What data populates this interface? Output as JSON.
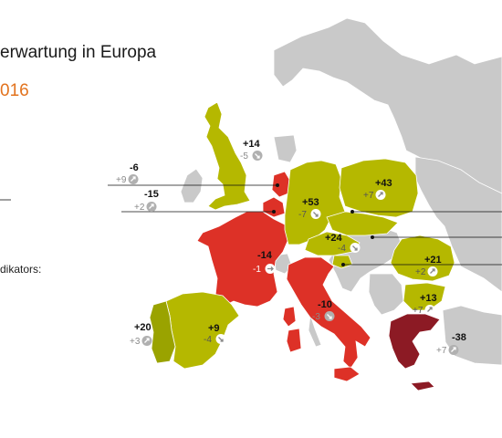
{
  "header": {
    "title": "erwartung in Europa",
    "subtitle": "016",
    "legend_label": "dikators:"
  },
  "colors": {
    "olive": "#b5b800",
    "olive_dark": "#9aa300",
    "red": "#dd3127",
    "dark_red": "#8c1a24",
    "grey": "#c9c9c9",
    "sea": "#ffffff"
  },
  "countries": [
    {
      "id": "uk",
      "name": "Großbritannien",
      "category": "olive",
      "value": "-6",
      "change": "+9",
      "arrow": "up"
    },
    {
      "id": "nl",
      "name": "Niederlande",
      "category": "red",
      "value": "+14",
      "change": "-5",
      "arrow": "down"
    },
    {
      "id": "be",
      "name": "Belgien",
      "category": "red",
      "value": "-15",
      "change": "+2",
      "arrow": "up"
    },
    {
      "id": "de",
      "name": "Deutschland",
      "category": "olive",
      "value": "+53",
      "change": "-7",
      "arrow": "down"
    },
    {
      "id": "pl",
      "name": "Polen",
      "category": "olive",
      "value": "+43",
      "change": "+7",
      "arrow": "up"
    },
    {
      "id": "fr",
      "name": "Frankreich",
      "category": "red",
      "value": "-14",
      "change": "-1",
      "arrow": "flat"
    },
    {
      "id": "at",
      "name": "Österreich",
      "category": "olive",
      "value": "+24",
      "change": "-4",
      "arrow": "down"
    },
    {
      "id": "ro",
      "name": "Rumänien",
      "category": "olive",
      "value": "+21",
      "change": "+2",
      "arrow": "up"
    },
    {
      "id": "bg",
      "name": "Bulgarien",
      "category": "olive",
      "value": "+13",
      "change": "+7",
      "arrow": "up"
    },
    {
      "id": "it",
      "name": "Italien",
      "category": "red",
      "value": "-10",
      "change": "-3",
      "arrow": "down"
    },
    {
      "id": "pt",
      "name": "Portugal",
      "category": "olive",
      "value": "+20",
      "change": "+3",
      "arrow": "up"
    },
    {
      "id": "es",
      "name": "Spanien",
      "category": "olive",
      "value": "+9",
      "change": "-4",
      "arrow": "down"
    },
    {
      "id": "gr",
      "name": "Griechenland",
      "category": "dark_red",
      "value": "-38",
      "change": "+7",
      "arrow": "up"
    }
  ]
}
